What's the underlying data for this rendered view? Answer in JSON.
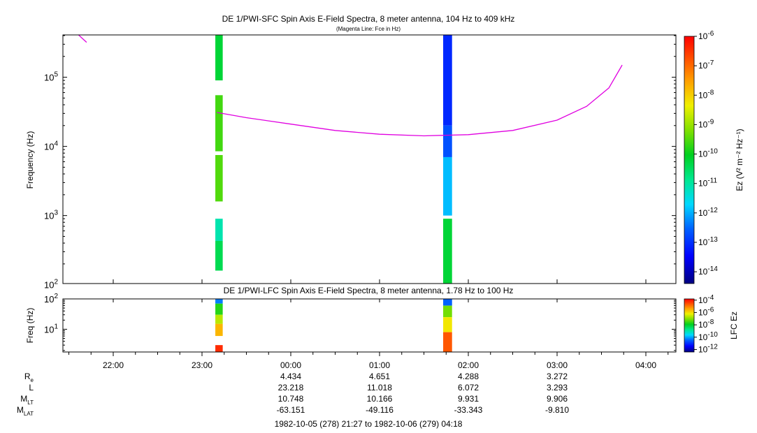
{
  "sfc": {
    "title": "DE 1/PWI-SFC  Spin Axis E-Field Spectra, 8 meter antenna, 104 Hz to 409 kHz",
    "subtitle": "(Magenta Line: Fce in Hz)",
    "ylabel": "Frequency (Hz)",
    "y_ticks": [
      {
        "base": "10",
        "exp": "2",
        "value": 100
      },
      {
        "base": "10",
        "exp": "3",
        "value": 1000
      },
      {
        "base": "10",
        "exp": "4",
        "value": 10000
      },
      {
        "base": "10",
        "exp": "5",
        "value": 100000
      }
    ],
    "colorbar_label": "Ez (V² m⁻² Hz⁻¹)",
    "colorbar_ticks": [
      {
        "base": "10",
        "exp": "-6",
        "value": -6
      },
      {
        "base": "10",
        "exp": "-7",
        "value": -7
      },
      {
        "base": "10",
        "exp": "-8",
        "value": -8
      },
      {
        "base": "10",
        "exp": "-9",
        "value": -9
      },
      {
        "base": "10",
        "exp": "-10",
        "value": -10
      },
      {
        "base": "10",
        "exp": "-11",
        "value": -11
      },
      {
        "base": "10",
        "exp": "-12",
        "value": -12
      },
      {
        "base": "10",
        "exp": "-13",
        "value": -13
      },
      {
        "base": "10",
        "exp": "-14",
        "value": -14
      }
    ]
  },
  "lfc": {
    "title": "DE 1/PWI-LFC  Spin Axis E-Field Spectra, 8 meter antenna, 1.78 Hz to 100 Hz",
    "ylabel": "Freq (Hz)",
    "y_ticks": [
      {
        "base": "10",
        "exp": "1",
        "value": 10
      },
      {
        "base": "10",
        "exp": "2",
        "value": 100
      }
    ],
    "colorbar_label": "LFC Ez",
    "colorbar_ticks": [
      {
        "base": "10",
        "exp": "-4",
        "value": -4
      },
      {
        "base": "10",
        "exp": "-6",
        "value": -6
      },
      {
        "base": "10",
        "exp": "-8",
        "value": -8
      },
      {
        "base": "10",
        "exp": "-10",
        "value": -10
      },
      {
        "base": "10",
        "exp": "-12",
        "value": -12
      }
    ]
  },
  "x_ticks": [
    "22:00",
    "23:00",
    "00:00",
    "01:00",
    "02:00",
    "03:00",
    "04:00"
  ],
  "ephemeris": {
    "row_labels": [
      {
        "main": "R",
        "sub": "e"
      },
      {
        "main": "L",
        "sub": ""
      },
      {
        "main": "M",
        "sub": "LT"
      },
      {
        "main": "M",
        "sub": "LAT"
      }
    ],
    "columns": [
      {
        "time": "00:00",
        "values": [
          "4.434",
          "23.218",
          "10.748",
          "-63.151"
        ]
      },
      {
        "time": "01:00",
        "values": [
          "4.651",
          "11.018",
          "10.166",
          "-49.116"
        ]
      },
      {
        "time": "02:00",
        "values": [
          "4.288",
          "6.072",
          "9.931",
          "-33.343"
        ]
      },
      {
        "time": "03:00",
        "values": [
          "3.272",
          "3.293",
          "9.906",
          "-9.810"
        ]
      }
    ]
  },
  "footer": "1982-10-05 (278) 21:27 to 1982-10-06 (279) 04:18",
  "chart_data": [
    {
      "type": "heatmap",
      "title": "DE 1/PWI-SFC  Spin Axis E-Field Spectra, 8 meter antenna, 104 Hz to 409 kHz",
      "xlabel": "",
      "ylabel": "Frequency (Hz)",
      "yscale": "log",
      "xlim": [
        "21:27",
        "04:18"
      ],
      "ylim": [
        104,
        409000
      ],
      "colorscale": "rainbow",
      "clim_log10": [
        -14.4,
        -6
      ],
      "magenta_line_fce": {
        "color": "#e000e0",
        "points": [
          {
            "t": "21:36",
            "f": 420000
          },
          {
            "t": "21:42",
            "f": 320000
          },
          {
            "t": "23:10",
            "f": 31000
          },
          {
            "t": "23:30",
            "f": 26000
          },
          {
            "t": "00:00",
            "f": 21000
          },
          {
            "t": "00:30",
            "f": 17000
          },
          {
            "t": "01:00",
            "f": 15000
          },
          {
            "t": "01:30",
            "f": 14200
          },
          {
            "t": "02:00",
            "f": 14800
          },
          {
            "t": "02:30",
            "f": 17000
          },
          {
            "t": "03:00",
            "f": 24000
          },
          {
            "t": "03:20",
            "f": 38000
          },
          {
            "t": "03:35",
            "f": 70000
          },
          {
            "t": "03:44",
            "f": 150000
          }
        ]
      },
      "blocks": [
        {
          "t0": "23:09",
          "t1": "23:14",
          "f0": 90000,
          "f1": 409000,
          "log10_ez": -10.2
        },
        {
          "t0": "23:09",
          "t1": "23:14",
          "f0": 8500,
          "f1": 55000,
          "log10_ez": -9.6
        },
        {
          "t0": "23:09",
          "t1": "23:14",
          "f0": 1600,
          "f1": 7500,
          "log10_ez": -9.5
        },
        {
          "t0": "23:09",
          "t1": "23:14",
          "f0": 430,
          "f1": 900,
          "log10_ez": -11.1
        },
        {
          "t0": "23:09",
          "t1": "23:14",
          "f0": 160,
          "f1": 430,
          "log10_ez": -10.4
        },
        {
          "t0": "01:43",
          "t1": "01:49",
          "f0": 20000,
          "f1": 409000,
          "log10_ez": -13.1
        },
        {
          "t0": "01:43",
          "t1": "01:49",
          "f0": 7000,
          "f1": 20000,
          "log10_ez": -12.7
        },
        {
          "t0": "01:43",
          "t1": "01:49",
          "f0": 1000,
          "f1": 7000,
          "log10_ez": -11.9
        },
        {
          "t0": "01:43",
          "t1": "01:49",
          "f0": 104,
          "f1": 900,
          "log10_ez": -10.2
        }
      ]
    },
    {
      "type": "heatmap",
      "title": "DE 1/PWI-LFC  Spin Axis E-Field Spectra, 8 meter antenna, 1.78 Hz to 100 Hz",
      "xlabel": "",
      "ylabel": "Freq (Hz)",
      "yscale": "log",
      "ylim": [
        1.78,
        100
      ],
      "colorscale": "rainbow",
      "clim_log10": [
        -12,
        -3.8
      ],
      "blocks": [
        {
          "t0": "23:09",
          "t1": "23:14",
          "f0": 70,
          "f1": 100,
          "log10_ez": -10.0
        },
        {
          "t0": "23:09",
          "t1": "23:14",
          "f0": 30,
          "f1": 70,
          "log10_ez": -7.5
        },
        {
          "t0": "23:09",
          "t1": "23:14",
          "f0": 15,
          "f1": 30,
          "log10_ez": -6.5
        },
        {
          "t0": "23:09",
          "t1": "23:14",
          "f0": 6,
          "f1": 15,
          "log10_ez": -5.5
        },
        {
          "t0": "23:09",
          "t1": "23:14",
          "f0": 1.78,
          "f1": 3,
          "log10_ez": -4.2
        },
        {
          "t0": "01:43",
          "t1": "01:49",
          "f0": 60,
          "f1": 100,
          "log10_ez": -10.2
        },
        {
          "t0": "01:43",
          "t1": "01:49",
          "f0": 25,
          "f1": 60,
          "log10_ez": -7.0
        },
        {
          "t0": "01:43",
          "t1": "01:49",
          "f0": 8,
          "f1": 25,
          "log10_ez": -6.0
        },
        {
          "t0": "01:43",
          "t1": "01:49",
          "f0": 1.78,
          "f1": 8,
          "log10_ez": -4.6
        }
      ]
    }
  ]
}
